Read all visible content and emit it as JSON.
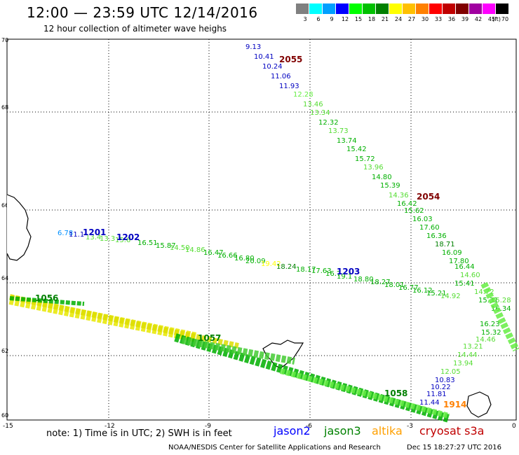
{
  "header": {
    "title": "12:00 — 23:59 UTC 12/14/2016",
    "subtitle": "12 hour collection of altimeter wave heighs"
  },
  "legend": {
    "colors": [
      "#808080",
      "#00ffff",
      "#00a0ff",
      "#0000ff",
      "#00ff00",
      "#00c000",
      "#008000",
      "#ffff00",
      "#ffc000",
      "#ff8000",
      "#ff0000",
      "#c00000",
      "#800000",
      "#a000a0",
      "#ff00ff",
      "#000000"
    ],
    "labels": [
      "3",
      "6",
      "9",
      "12",
      "15",
      "18",
      "21",
      "24",
      "27",
      "30",
      "33",
      "36",
      "39",
      "42",
      "45",
      "70"
    ],
    "unit": "(ft)"
  },
  "map": {
    "lat_labels": [
      "70",
      "68",
      "66",
      "64",
      "62",
      "60"
    ],
    "lon_labels": [
      "-15",
      "-12",
      "-9",
      "-6",
      "-3",
      "0"
    ],
    "pass_labels": [
      {
        "text": "2055",
        "color": "#800000"
      },
      {
        "text": "2054",
        "color": "#800000"
      },
      {
        "text": "1201",
        "color": "#0000c0"
      },
      {
        "text": "1202",
        "color": "#0000c0"
      },
      {
        "text": "1203",
        "color": "#0000c0"
      },
      {
        "text": "1058",
        "color": "#008000"
      },
      {
        "text": "1056",
        "color": "#008000"
      },
      {
        "text": "1057",
        "color": "#008000"
      },
      {
        "text": "1914",
        "color": "#ff8000"
      }
    ],
    "track_north_values": [
      "9.13",
      "10.41",
      "10.24",
      "11.06",
      "11.93",
      "12.28",
      "13.46",
      "13.34",
      "12.32",
      "13.73",
      "13.74",
      "15.42",
      "15.72",
      "13.96",
      "14.80",
      "15.39",
      "14.36",
      "16.42",
      "15.62",
      "16.03",
      "17.60",
      "16.36",
      "18.71",
      "16.09",
      "17.80",
      "16.44",
      "14.60",
      "15.41",
      "14.72",
      "15.31",
      "15.28",
      "16.34",
      "16.23",
      "15.32",
      "14.46",
      "13.21",
      "14.44",
      "13.94",
      "12.05",
      "10.83",
      "10.22",
      "11.81",
      "11.44"
    ],
    "track_west_values": [
      "6.78",
      "11.1",
      "13.4",
      "13.3",
      "15.6",
      "16.51",
      "15.87",
      "14.50",
      "14.86",
      "16.47",
      "16.66",
      "16.80",
      "20.09",
      "19.42",
      "18.24",
      "18.17",
      "17.63",
      "16.7",
      "19.1",
      "18.80",
      "18.27",
      "18.01",
      "16.77",
      "16.12",
      "15.21",
      "14.92"
    ]
  },
  "footer": {
    "note": "note:  1) Time is in UTC;  2) SWH is in feet",
    "satellites": [
      {
        "name": "jason2",
        "color": "#0000ff"
      },
      {
        "name": "jason3",
        "color": "#008000"
      },
      {
        "name": "altika",
        "color": "#ffa000"
      },
      {
        "name": "cryosat s3a",
        "color": "#c00000"
      }
    ],
    "credit": "NOAA/NESDIS Center for Satellite Applications and Research",
    "stamp": "Dec 15 18:27:27 UTC 2016"
  }
}
